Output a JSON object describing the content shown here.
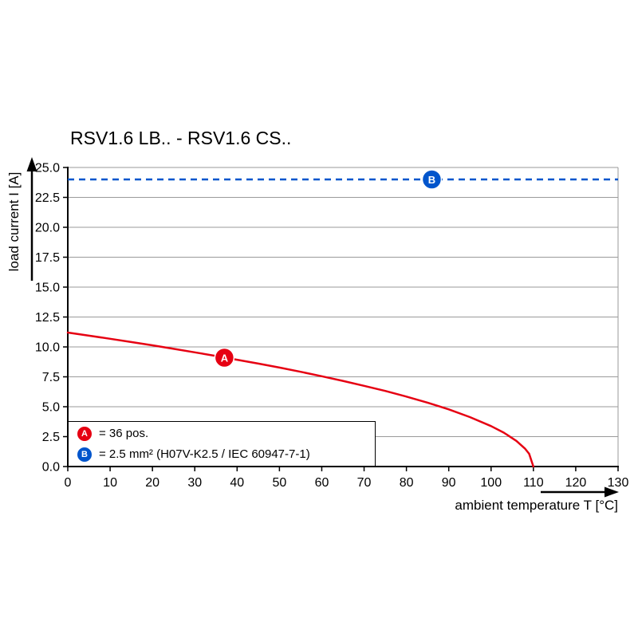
{
  "chart_data": {
    "type": "line",
    "title": "RSV1.6 LB.. - RSV1.6 CS..",
    "xlabel": "ambient temperature T [°C]",
    "ylabel": "load current I [A]",
    "xlim": [
      0,
      130
    ],
    "ylim": [
      0,
      25
    ],
    "x_ticks": [
      0,
      10,
      20,
      30,
      40,
      50,
      60,
      70,
      80,
      90,
      100,
      110,
      120,
      130
    ],
    "y_ticks": [
      0,
      2.5,
      5,
      7.5,
      10,
      12.5,
      15,
      17.5,
      20,
      22.5,
      25
    ],
    "y_tick_labels": [
      "0.0",
      "2.5",
      "5.0",
      "7.5",
      "10.0",
      "12.5",
      "15.0",
      "17.5",
      "20.0",
      "22.5",
      "25.0"
    ],
    "grid": "horizontal",
    "legend_position": "bottom-left-inside",
    "colors": {
      "axis": "#000000",
      "grid": "#9a9a9a",
      "series_a": "#e60012",
      "series_b": "#0055cc"
    },
    "series": [
      {
        "name": "A",
        "legend": "= 36 pos.",
        "type": "curve",
        "color": "#e60012",
        "points": [
          [
            0,
            11.2
          ],
          [
            5,
            10.94
          ],
          [
            10,
            10.68
          ],
          [
            15,
            10.41
          ],
          [
            20,
            10.13
          ],
          [
            25,
            9.84
          ],
          [
            30,
            9.55
          ],
          [
            35,
            9.24
          ],
          [
            40,
            8.93
          ],
          [
            45,
            8.61
          ],
          [
            50,
            8.27
          ],
          [
            55,
            7.92
          ],
          [
            60,
            7.55
          ],
          [
            65,
            7.16
          ],
          [
            70,
            6.75
          ],
          [
            75,
            6.32
          ],
          [
            80,
            5.85
          ],
          [
            85,
            5.34
          ],
          [
            90,
            4.78
          ],
          [
            95,
            4.13
          ],
          [
            100,
            3.38
          ],
          [
            103,
            2.83
          ],
          [
            106,
            2.14
          ],
          [
            108,
            1.51
          ],
          [
            109,
            1.07
          ],
          [
            110,
            0
          ]
        ],
        "marker": {
          "label": "A",
          "x": 37,
          "y": 9.1
        }
      },
      {
        "name": "B",
        "legend": "= 2.5 mm² (H07V-K2.5 / IEC 60947-7-1)",
        "type": "dashed-horizontal",
        "color": "#0055cc",
        "y": 24,
        "marker": {
          "label": "B",
          "x": 86,
          "y": 24
        }
      }
    ]
  }
}
